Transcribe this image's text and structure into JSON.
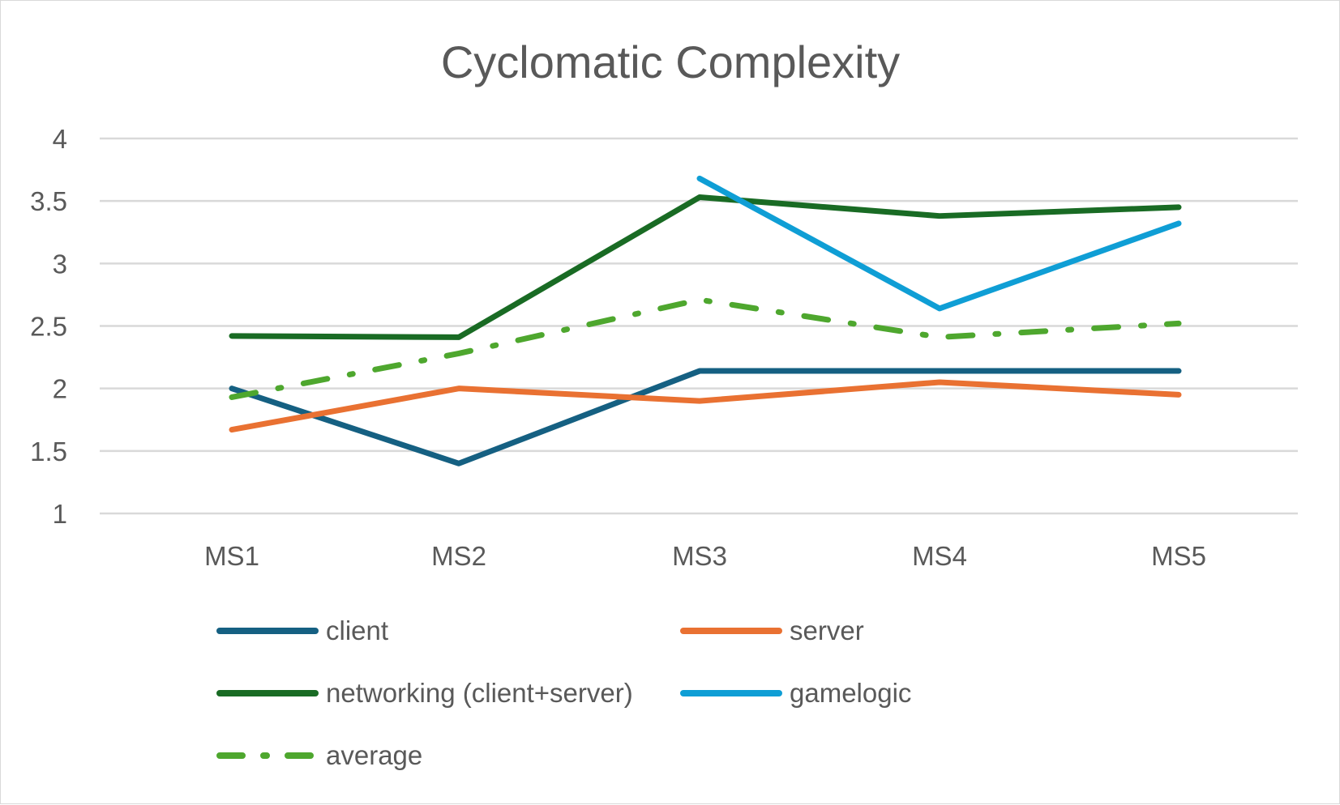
{
  "chart_data": {
    "type": "line",
    "title": "Cyclomatic Complexity",
    "xlabel": "",
    "ylabel": "",
    "categories": [
      "MS1",
      "MS2",
      "MS3",
      "MS4",
      "MS5"
    ],
    "ylim": [
      1,
      4
    ],
    "yticks": [
      1,
      1.5,
      2,
      2.5,
      3,
      3.5,
      4
    ],
    "ytick_labels": [
      "1",
      "1.5",
      "2",
      "2.5",
      "3",
      "3.5",
      "4"
    ],
    "grid": true,
    "legend_position": "bottom",
    "series": [
      {
        "name": "client",
        "color": "#156082",
        "style": "solid",
        "values": [
          2.0,
          1.4,
          2.14,
          2.14,
          2.14
        ]
      },
      {
        "name": "server",
        "color": "#E97132",
        "style": "solid",
        "values": [
          1.67,
          2.0,
          1.9,
          2.05,
          1.95
        ]
      },
      {
        "name": "networking (client+server)",
        "color": "#196B24",
        "style": "solid",
        "values": [
          2.42,
          2.41,
          3.53,
          3.38,
          3.45
        ]
      },
      {
        "name": "gamelogic",
        "color": "#0F9ED5",
        "style": "solid",
        "values": [
          null,
          null,
          3.68,
          2.64,
          3.32
        ]
      },
      {
        "name": "average",
        "color": "#4EA72E",
        "style": "dash-dot",
        "values": [
          1.93,
          2.28,
          2.71,
          2.41,
          2.52
        ]
      }
    ]
  }
}
